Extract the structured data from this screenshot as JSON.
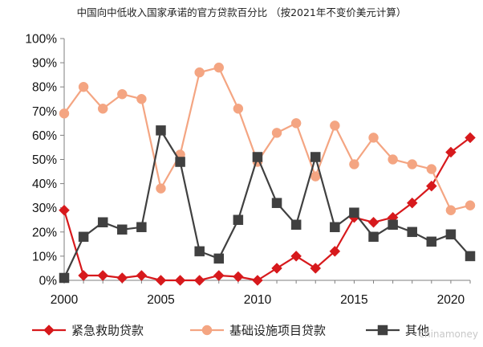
{
  "chart_data": {
    "type": "line",
    "title": "中国向中低收入国家承诺的官方贷款百分比 （按2021年不变价美元计算）",
    "xlabel": "",
    "ylabel": "",
    "xlim": [
      2000,
      2021
    ],
    "ylim": [
      0,
      100
    ],
    "x_ticks": [
      2000,
      2005,
      2010,
      2015,
      2020
    ],
    "y_ticks": [
      "0%",
      "10%",
      "20%",
      "30%",
      "40%",
      "50%",
      "60%",
      "70%",
      "80%",
      "90%",
      "100%"
    ],
    "x": [
      2000,
      2001,
      2002,
      2003,
      2004,
      2005,
      2006,
      2007,
      2008,
      2009,
      2010,
      2011,
      2012,
      2013,
      2014,
      2015,
      2016,
      2017,
      2018,
      2019,
      2020,
      2021
    ],
    "series": [
      {
        "name": "紧急救助贷款",
        "color": "#d7191c",
        "marker": "diamond",
        "values": [
          29,
          2,
          2,
          1,
          2,
          0,
          0,
          0,
          2,
          1.5,
          0,
          5,
          10,
          5,
          12,
          26,
          24,
          26,
          32,
          39,
          53,
          59
        ]
      },
      {
        "name": "基础设施项目贷款",
        "color": "#f4a582",
        "marker": "circle",
        "values": [
          69,
          80,
          71,
          77,
          75,
          38,
          52,
          86,
          88,
          71,
          49,
          61,
          65,
          43,
          64,
          48,
          59,
          50,
          48,
          46,
          29,
          31
        ]
      },
      {
        "name": "其他",
        "color": "#404040",
        "marker": "square",
        "values": [
          1,
          18,
          24,
          21,
          22,
          62,
          49,
          12,
          9,
          25,
          51,
          32,
          23,
          51,
          22,
          28,
          18,
          23,
          20,
          16,
          19,
          10
        ]
      }
    ],
    "grid": false,
    "legend_position": "bottom"
  },
  "watermark": "chinamoney"
}
